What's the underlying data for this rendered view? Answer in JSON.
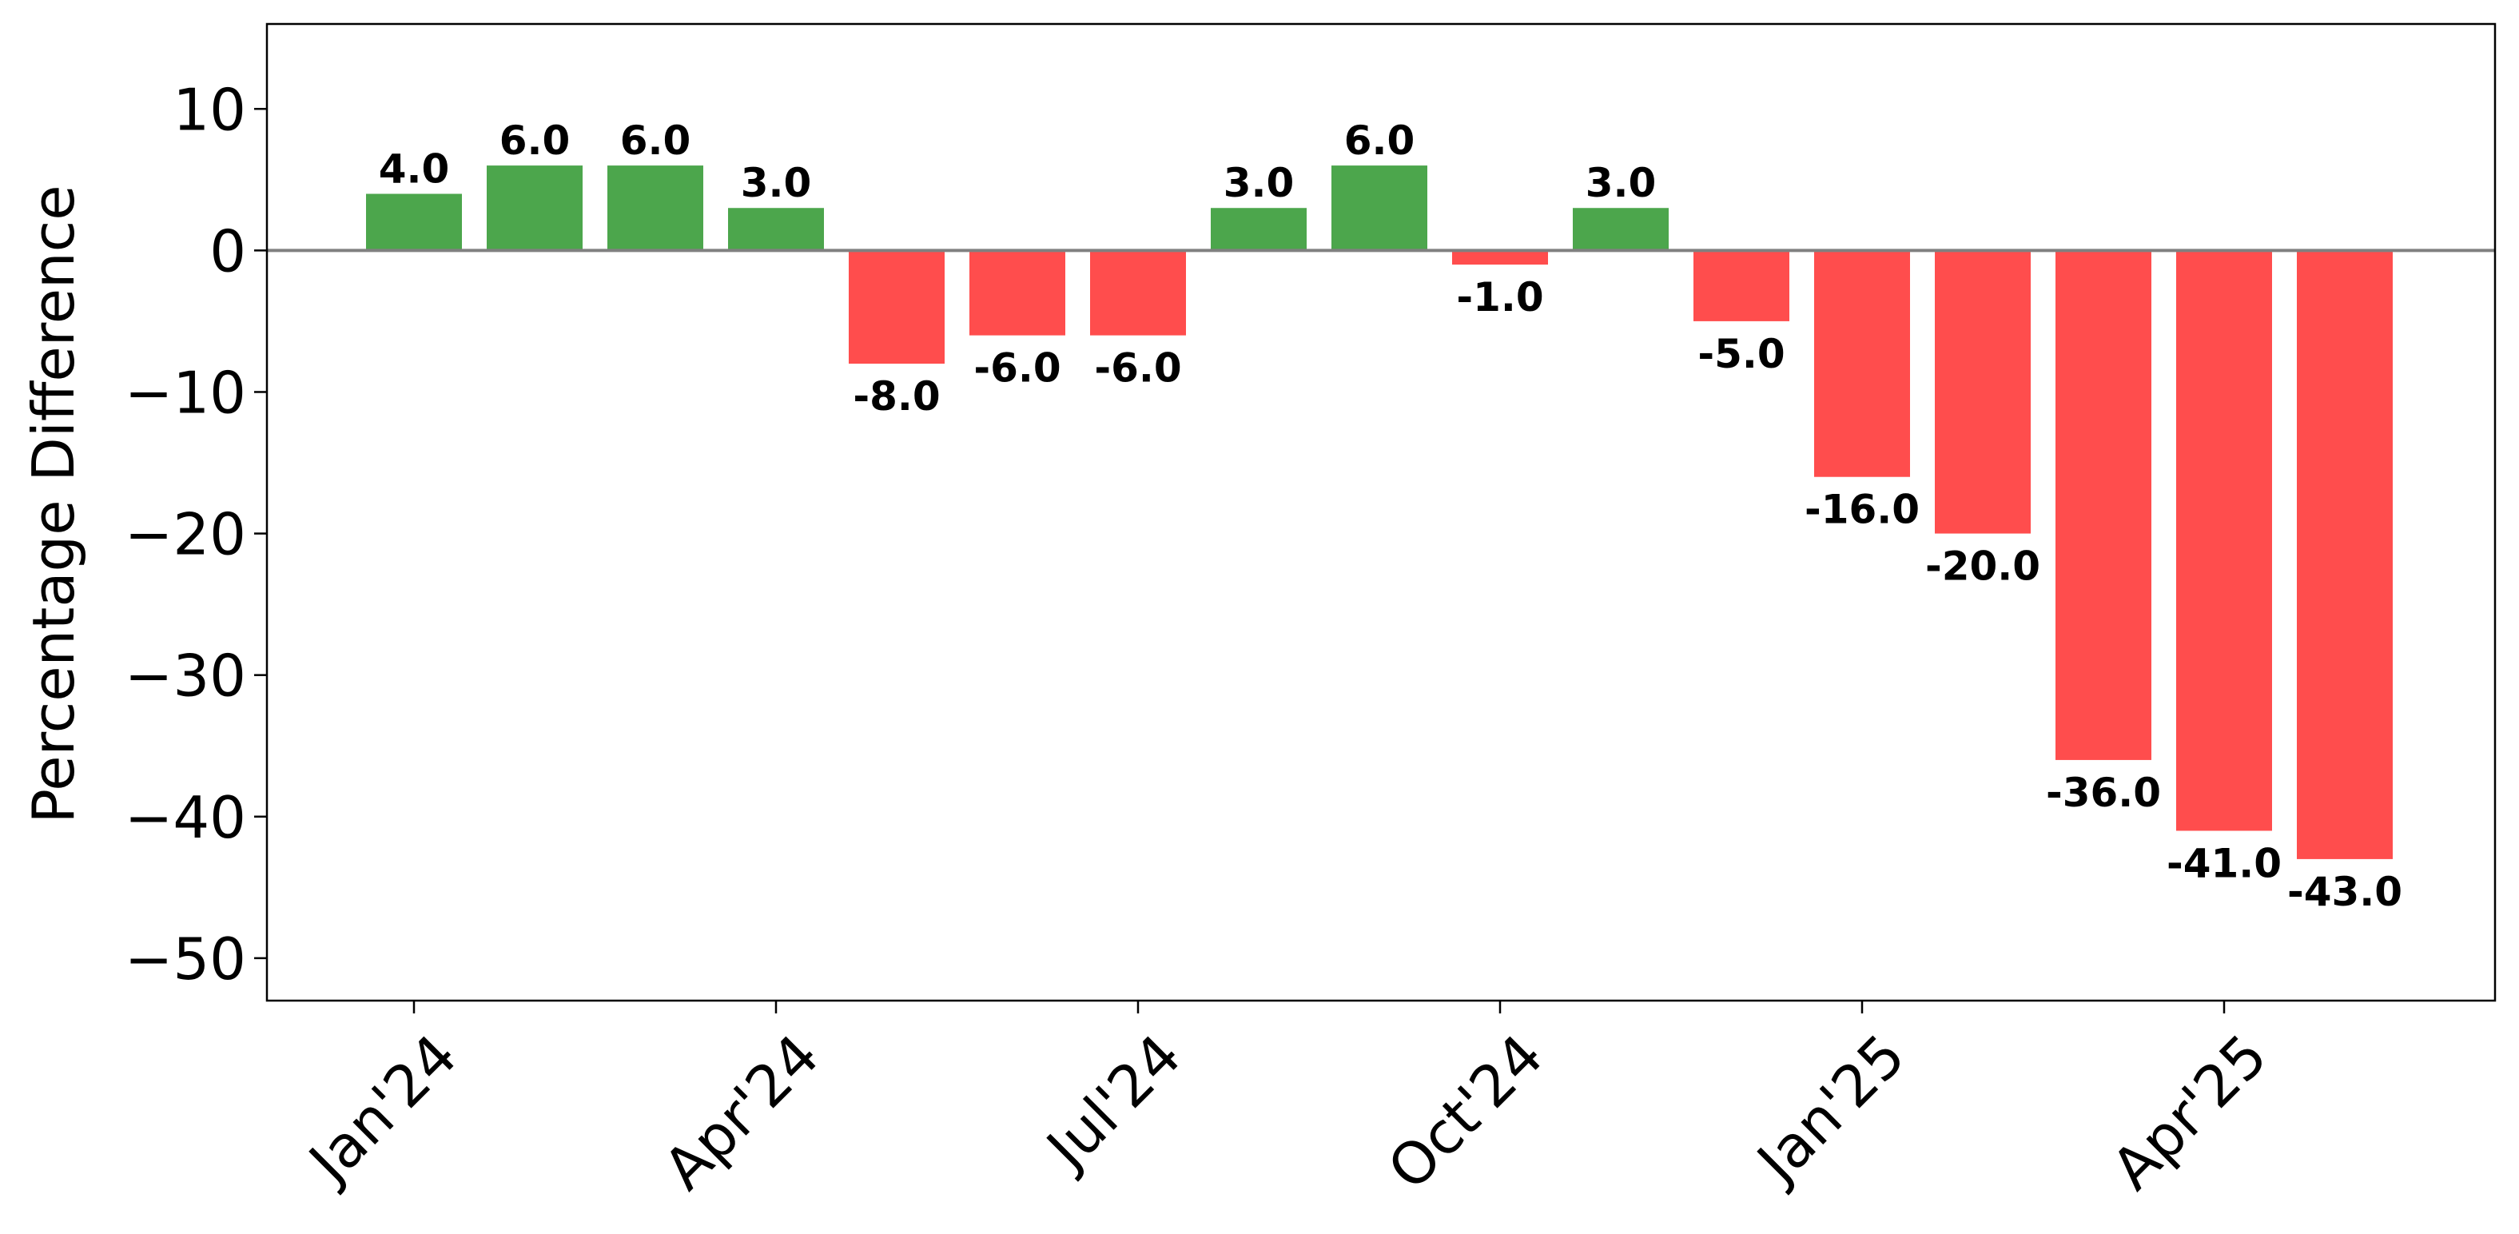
{
  "chart_data": {
    "type": "bar",
    "ylabel": "Percentage Difference",
    "xlabel": "",
    "title": "",
    "ylim": [
      -53,
      16
    ],
    "yticks": [
      -50,
      -40,
      -30,
      -20,
      -10,
      0,
      10
    ],
    "ytick_labels": [
      "−50",
      "−40",
      "−30",
      "−20",
      "−10",
      "0",
      "10"
    ],
    "categories": [
      "2024-01",
      "2024-02",
      "2024-03",
      "2024-04",
      "2024-05",
      "2024-06",
      "2024-07",
      "2024-08",
      "2024-09",
      "2024-10",
      "2024-11",
      "2024-12",
      "2025-01",
      "2025-02",
      "2025-03",
      "2025-04",
      "2025-05"
    ],
    "values": [
      4.0,
      6.0,
      6.0,
      3.0,
      -8.0,
      -6.0,
      -6.0,
      3.0,
      6.0,
      -1.0,
      3.0,
      -5.0,
      -16.0,
      -20.0,
      -36.0,
      -41.0,
      -43.0
    ],
    "value_labels": [
      "4.0",
      "6.0",
      "6.0",
      "3.0",
      "-8.0",
      "-6.0",
      "-6.0",
      "3.0",
      "6.0",
      "-1.0",
      "3.0",
      "-5.0",
      "-16.0",
      "-20.0",
      "-36.0",
      "-41.0",
      "-43.0"
    ],
    "xticks": [
      {
        "category": "2024-01",
        "label": "Jan'24"
      },
      {
        "category": "2024-04",
        "label": "Apr'24"
      },
      {
        "category": "2024-07",
        "label": "Jul'24"
      },
      {
        "category": "2024-10",
        "label": "Oct'24"
      },
      {
        "category": "2025-01",
        "label": "Jan'25"
      },
      {
        "category": "2025-04",
        "label": "Apr'25"
      }
    ],
    "colors": {
      "positive": "#4ca64c",
      "negative": "#ff4d4d",
      "zero_line": "#808080"
    },
    "grid": false,
    "legend": "none"
  }
}
